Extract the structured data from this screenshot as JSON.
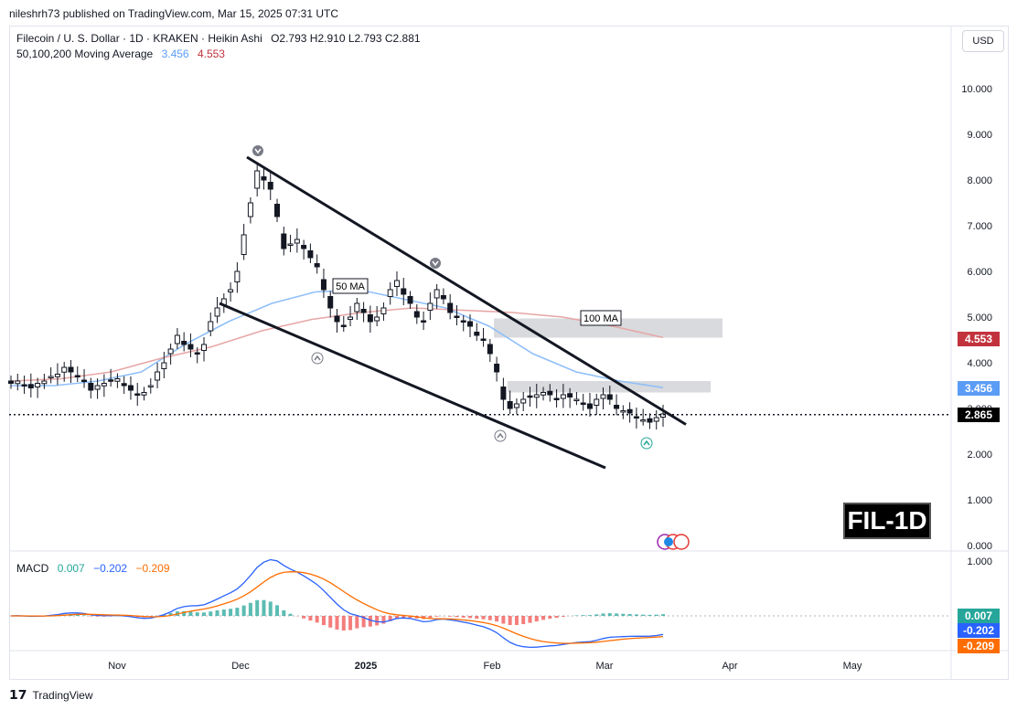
{
  "header": {
    "published": "nileshrh73 published on TradingView.com, Mar 15, 2025 07:31 UTC"
  },
  "legend": {
    "symbol": "Filecoin / U. S. Dollar · 1D · KRAKEN · Heikin Ashi",
    "ohlc": "O2.793 H2.910 L2.793 C2.881",
    "ma_label": "50,100,200 Moving Average",
    "ma50": "3.456",
    "ma100": "4.553"
  },
  "currency": "USD",
  "badges": {
    "last_price": "2.865",
    "ma50_price": "3.456",
    "ma100_price": "4.553"
  },
  "annotations": {
    "ma50_label": "50 MA",
    "ma100_label": "100 MA",
    "symbol_badge": "FIL-1D"
  },
  "macd_legend": {
    "label": "MACD",
    "hist": "0.007",
    "macd": "−0.202",
    "signal": "−0.209"
  },
  "macd_badges": {
    "hist": "0.007",
    "macd": "-0.202",
    "signal": "-0.209"
  },
  "footer": {
    "brand": "TradingView"
  },
  "colors": {
    "up": "#26a69a",
    "down": "#ef5350",
    "ma50": "#90bff9",
    "ma100": "#e7a6a6",
    "macd": "#2962ff",
    "signal": "#ff6d00",
    "hist_up": "#26a69a",
    "hist_down": "#ef5350"
  },
  "chart_data": {
    "type": "candlestick",
    "price_axis": {
      "ticks": [
        "10.000",
        "9.000",
        "8.000",
        "7.000",
        "6.000",
        "5.000",
        "4.000",
        "3.000",
        "2.000",
        "1.000",
        "0.000"
      ],
      "range": [
        0,
        10
      ]
    },
    "time_axis": {
      "labels": [
        "Nov",
        "Dec",
        "2025",
        "Feb",
        "Mar",
        "Apr",
        "May"
      ]
    },
    "macd_axis": {
      "ticks": [
        "1.000"
      ]
    },
    "close_series": [
      3.55,
      3.6,
      3.5,
      3.45,
      3.55,
      3.6,
      3.7,
      3.75,
      3.9,
      3.8,
      3.7,
      3.6,
      3.4,
      3.5,
      3.55,
      3.6,
      3.65,
      3.5,
      3.4,
      3.3,
      3.35,
      3.5,
      3.8,
      4.0,
      4.3,
      4.6,
      4.4,
      4.3,
      4.2,
      4.4,
      4.9,
      5.2,
      5.4,
      5.6,
      6.0,
      6.8,
      7.5,
      8.2,
      8.0,
      7.8,
      7.2,
      6.5,
      6.6,
      6.7,
      6.5,
      6.3,
      6.1,
      5.6,
      5.2,
      4.9,
      4.8,
      5.0,
      5.3,
      5.1,
      4.9,
      5.0,
      5.2,
      5.6,
      5.8,
      5.5,
      5.3,
      5.0,
      4.9,
      5.3,
      5.6,
      5.4,
      5.1,
      5.0,
      4.9,
      4.8,
      4.6,
      4.5,
      4.2,
      3.8,
      3.2,
      3.0,
      3.1,
      3.2,
      3.25,
      3.3,
      3.35,
      3.3,
      3.2,
      3.3,
      3.25,
      3.2,
      3.1,
      3.0,
      3.2,
      3.3,
      3.2,
      3.0,
      2.95,
      2.9,
      2.8,
      2.75,
      2.7,
      2.8,
      2.88
    ],
    "ma50": [
      3.5,
      3.5,
      3.6,
      3.8,
      4.4,
      4.9,
      5.3,
      5.55,
      5.6,
      5.4,
      5.2,
      4.8,
      4.2,
      3.8,
      3.6,
      3.456
    ],
    "ma100": [
      3.6,
      3.65,
      3.8,
      4.1,
      4.35,
      4.7,
      4.95,
      5.1,
      5.2,
      5.15,
      5.1,
      5.0,
      4.8,
      4.553
    ],
    "trendlines": [
      {
        "name": "upper",
        "from": [
          "Dec 1",
          8.5
        ],
        "to": [
          "Mar 20",
          2.65
        ]
      },
      {
        "name": "lower",
        "from": [
          "Nov 26",
          5.3
        ],
        "to": [
          "Mar 3",
          1.7
        ]
      }
    ],
    "zones": [
      {
        "range": [
          4.55,
          4.97
        ]
      },
      {
        "range": [
          3.35,
          3.6
        ]
      }
    ],
    "last_price": 2.865,
    "macd": {
      "hist": 0.007,
      "macd": -0.202,
      "signal": -0.209
    }
  }
}
